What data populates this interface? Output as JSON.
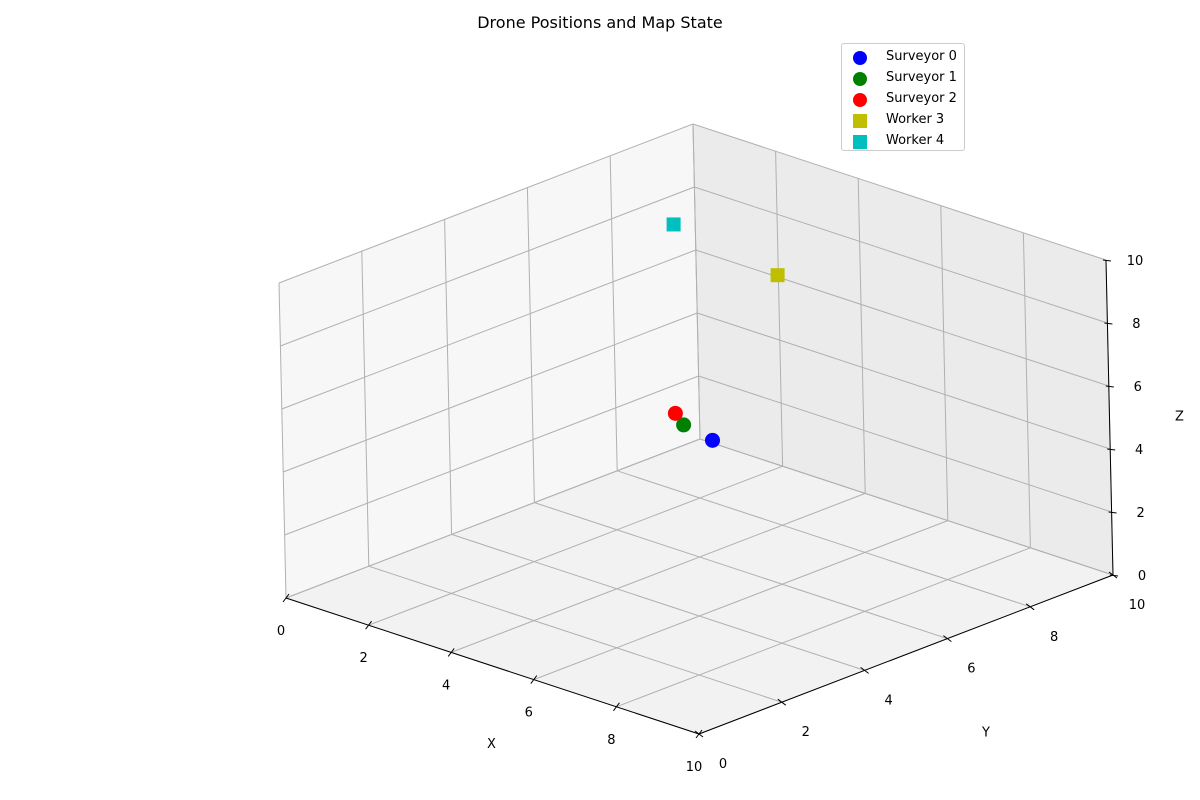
{
  "chart_data": {
    "type": "scatter",
    "title": "Drone Positions and Map State",
    "xlabel": "X",
    "ylabel": "Y",
    "zlabel": "Z",
    "xlim": [
      0,
      10
    ],
    "ylim": [
      0,
      10
    ],
    "zlim": [
      0,
      10
    ],
    "xticks": [
      "0",
      "2",
      "4",
      "6",
      "8",
      "10"
    ],
    "yticks": [
      "0",
      "2",
      "4",
      "6",
      "8",
      "10"
    ],
    "zticks": [
      "0",
      "2",
      "4",
      "6",
      "8",
      "10"
    ],
    "grid": true,
    "legend_position": "top-right",
    "series": [
      {
        "name": "Surveyor 0",
        "marker": "circle",
        "color": "#0000ff",
        "x": 5.6,
        "y": 4.8,
        "z": 5.0
      },
      {
        "name": "Surveyor 1",
        "marker": "circle",
        "color": "#008000",
        "x": 4.7,
        "y": 5.0,
        "z": 5.0
      },
      {
        "name": "Surveyor 2",
        "marker": "circle",
        "color": "#ff0000",
        "x": 4.2,
        "y": 5.3,
        "z": 5.0
      },
      {
        "name": "Worker 3",
        "marker": "square",
        "color": "#bfbf00",
        "x": 3.0,
        "y": 9.0,
        "z": 7.0
      },
      {
        "name": "Worker 4",
        "marker": "square",
        "color": "#00bfbf",
        "x": 1.0,
        "y": 8.5,
        "z": 8.0
      }
    ]
  }
}
